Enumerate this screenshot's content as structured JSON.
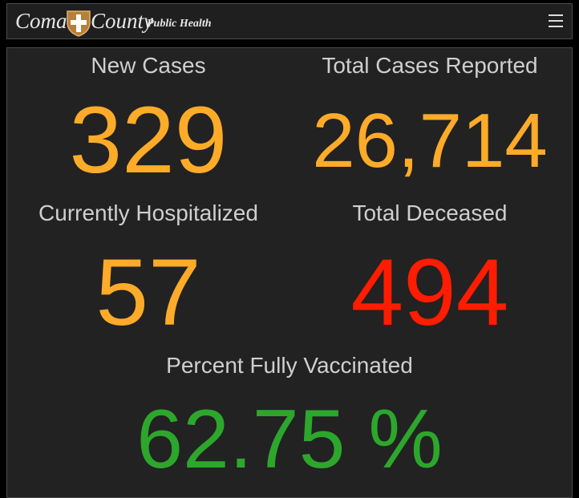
{
  "header": {
    "logo": {
      "first": "Comal",
      "second": "County",
      "tagline": "Public Health"
    }
  },
  "tiles": [
    {
      "label": "New Cases",
      "value": "329"
    },
    {
      "label": "Total Cases Reported",
      "value": "26,714"
    },
    {
      "label": "Currently Hospitalized",
      "value": "57"
    },
    {
      "label": "Total Deceased",
      "value": "494"
    },
    {
      "label": "Percent Fully Vaccinated",
      "value": "62.75 %"
    }
  ]
}
